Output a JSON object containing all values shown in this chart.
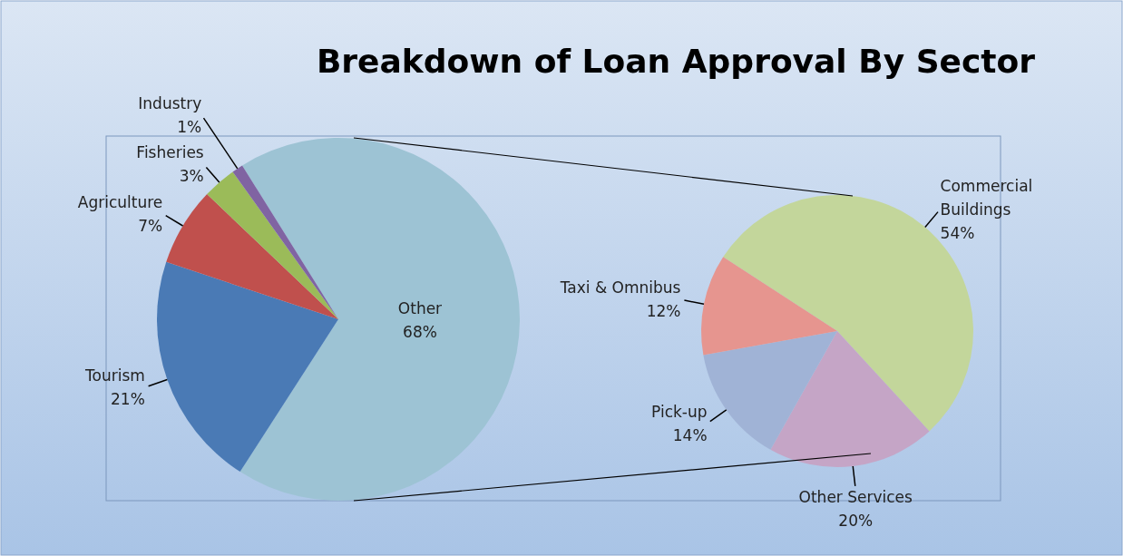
{
  "chart_data": [
    {
      "type": "pie",
      "title": "Breakdown of Loan Approval By Sector",
      "categories": [
        "Other",
        "Tourism",
        "Agriculture",
        "Fisheries",
        "Industry"
      ],
      "values": [
        68,
        21,
        7,
        3,
        1
      ],
      "value_labels": [
        "68%",
        "21%",
        "7%",
        "3%",
        "1%"
      ],
      "colors": [
        "#9dc3d4",
        "#4a7ab5",
        "#c0504d",
        "#9bbb59",
        "#8064a2"
      ]
    },
    {
      "type": "pie",
      "categories": [
        "Commercial Buildings",
        "Other Services",
        "Pick-up",
        "Taxi & Omnibus"
      ],
      "values": [
        54,
        20,
        14,
        12
      ],
      "value_labels": [
        "54%",
        "20%",
        "14%",
        "12%"
      ],
      "colors": [
        "#c3d69b",
        "#c5a5c6",
        "#a0b3d6",
        "#e6958f"
      ]
    }
  ]
}
